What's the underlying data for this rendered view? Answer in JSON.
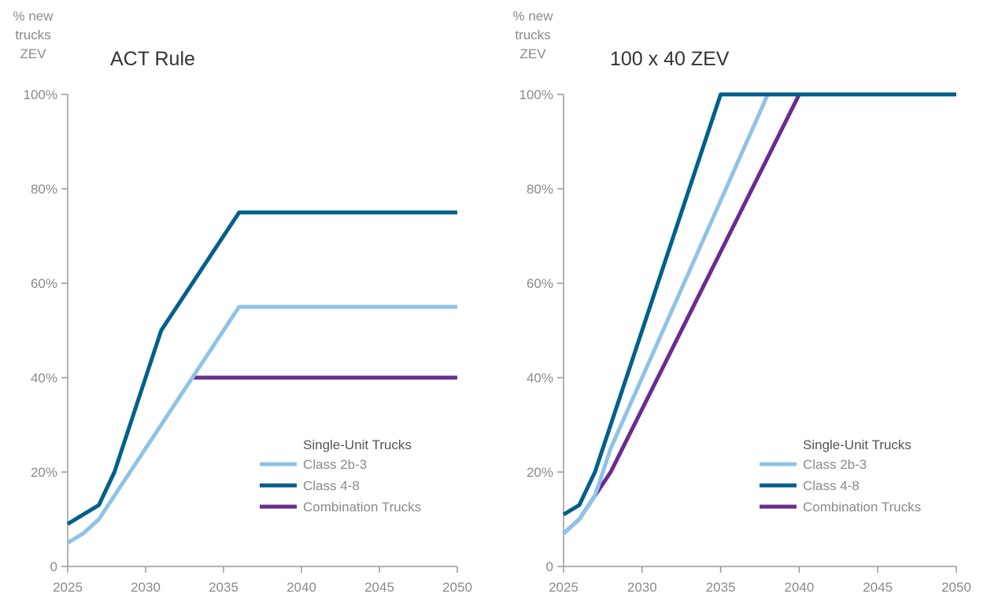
{
  "chart_data": [
    {
      "type": "line",
      "title": "ACT Rule",
      "ylabel": [
        "% new",
        "trucks",
        "ZEV"
      ],
      "xlabel": "",
      "xlim": [
        2025,
        2050
      ],
      "ylim": [
        0,
        100
      ],
      "x_ticks": [
        "2025",
        "2030",
        "2035",
        "2040",
        "2045",
        "2050"
      ],
      "y_ticks": [
        "0",
        "20%",
        "40%",
        "60%",
        "80%",
        "100%"
      ],
      "legend": {
        "header": "Single-Unit Trucks",
        "position": "lower-right"
      },
      "series": [
        {
          "name": "Class 2b-3",
          "color": "#8fc3e6",
          "points": [
            [
              2025,
              5
            ],
            [
              2026,
              7
            ],
            [
              2027,
              10
            ],
            [
              2028,
              15
            ],
            [
              2029,
              20
            ],
            [
              2030,
              25
            ],
            [
              2031,
              30
            ],
            [
              2032,
              35
            ],
            [
              2033,
              40
            ],
            [
              2034,
              45
            ],
            [
              2035,
              50
            ],
            [
              2036,
              55
            ],
            [
              2050,
              55
            ]
          ]
        },
        {
          "name": "Class 4-8",
          "color": "#005f8c",
          "points": [
            [
              2025,
              9
            ],
            [
              2026,
              11
            ],
            [
              2027,
              13
            ],
            [
              2028,
              20
            ],
            [
              2029,
              30
            ],
            [
              2030,
              40
            ],
            [
              2031,
              50
            ],
            [
              2032,
              55
            ],
            [
              2033,
              60
            ],
            [
              2034,
              65
            ],
            [
              2035,
              70
            ],
            [
              2036,
              75
            ],
            [
              2050,
              75
            ]
          ]
        },
        {
          "name": "Combination Trucks",
          "color": "#6a2c91",
          "points": [
            [
              2033,
              40
            ],
            [
              2050,
              40
            ]
          ]
        }
      ]
    },
    {
      "type": "line",
      "title": "100 x 40 ZEV",
      "ylabel": [
        "% new",
        "trucks",
        "ZEV"
      ],
      "xlabel": "",
      "xlim": [
        2025,
        2050
      ],
      "ylim": [
        0,
        100
      ],
      "x_ticks": [
        "2025",
        "2030",
        "2035",
        "2040",
        "2045",
        "2050"
      ],
      "y_ticks": [
        "0",
        "20%",
        "40%",
        "60%",
        "80%",
        "100%"
      ],
      "legend": {
        "header": "Single-Unit Trucks",
        "position": "lower-right"
      },
      "series": [
        {
          "name": "Class 2b-3",
          "color": "#8fc3e6",
          "points": [
            [
              2025,
              7
            ],
            [
              2026,
              10
            ],
            [
              2027,
              15
            ],
            [
              2028,
              25
            ],
            [
              2038,
              100
            ],
            [
              2050,
              100
            ]
          ]
        },
        {
          "name": "Class 4-8",
          "color": "#005f8c",
          "points": [
            [
              2025,
              11
            ],
            [
              2026,
              13
            ],
            [
              2027,
              20
            ],
            [
              2028,
              30
            ],
            [
              2035,
              100
            ],
            [
              2050,
              100
            ]
          ]
        },
        {
          "name": "Combination Trucks",
          "color": "#6a2c91",
          "points": [
            [
              2025,
              7
            ],
            [
              2026,
              10
            ],
            [
              2027,
              15
            ],
            [
              2028,
              20
            ],
            [
              2040,
              100
            ],
            [
              2050,
              100
            ]
          ]
        }
      ]
    }
  ]
}
